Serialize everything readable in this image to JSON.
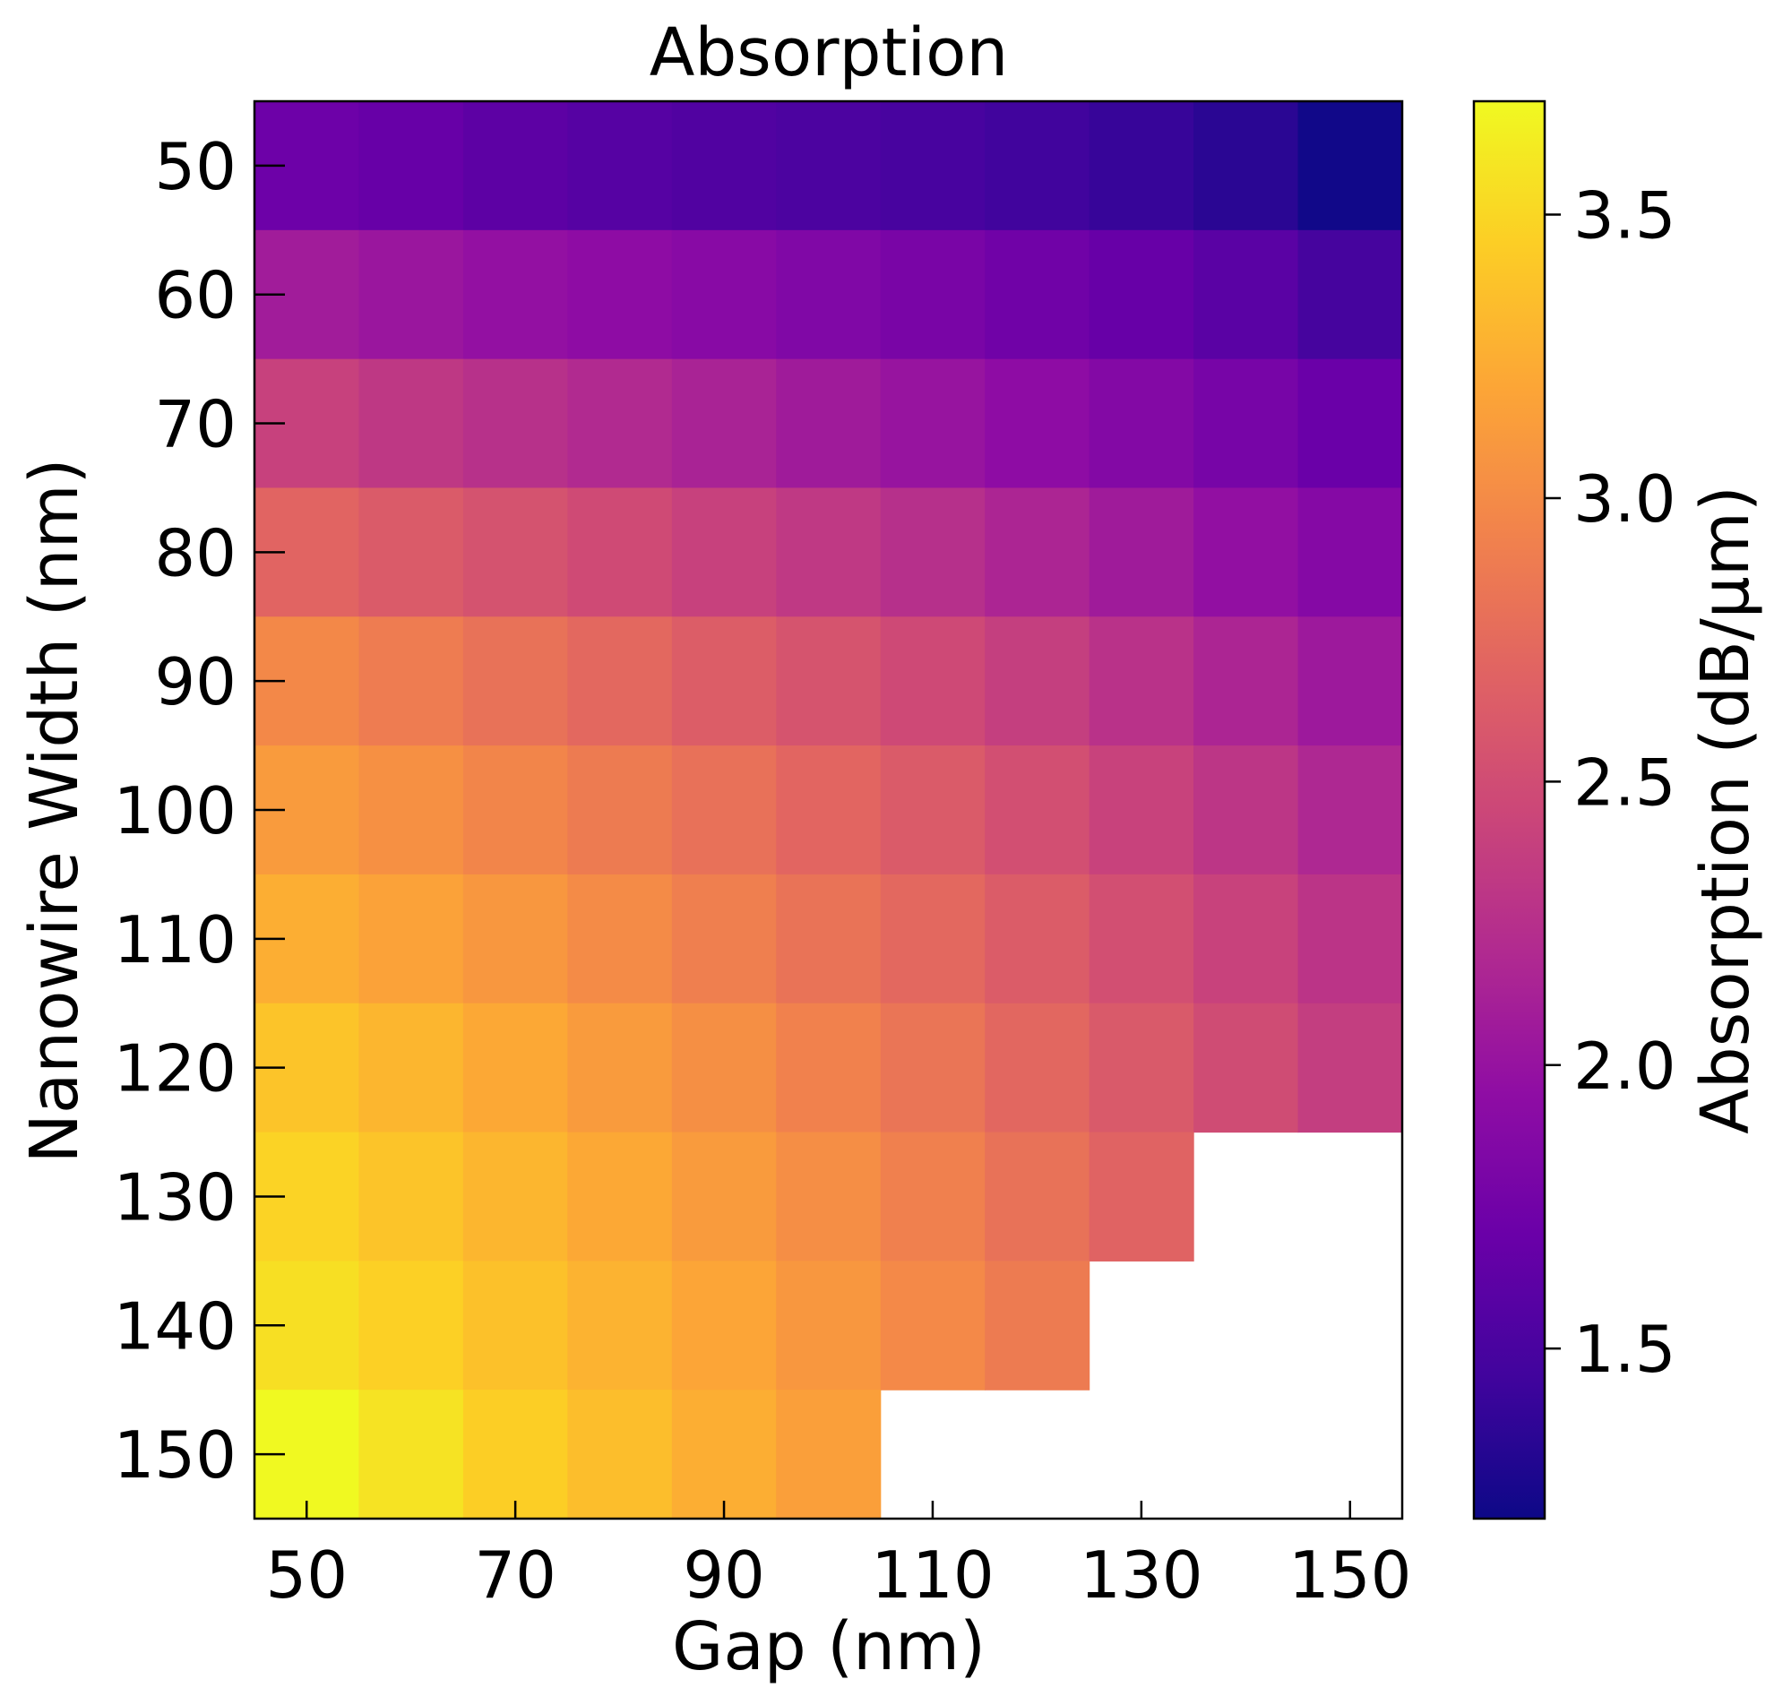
{
  "chart_data": {
    "type": "heatmap",
    "title": "Absorption",
    "xlabel": "Gap (nm)",
    "ylabel": "Nanowire Width (nm)",
    "colorbar_label": "Absorption (dB/μm)",
    "colormap": "plasma",
    "x": [
      50,
      60,
      70,
      80,
      90,
      100,
      110,
      120,
      130,
      140,
      150
    ],
    "y": [
      50,
      60,
      70,
      80,
      90,
      100,
      110,
      120,
      130,
      140,
      150
    ],
    "xticks": [
      50,
      70,
      90,
      110,
      130,
      150
    ],
    "yticks": [
      50,
      60,
      70,
      80,
      90,
      100,
      110,
      120,
      130,
      140,
      150
    ],
    "colorbar_ticks": [
      1.5,
      2.0,
      2.5,
      3.0,
      3.5
    ],
    "clim": [
      1.2,
      3.7
    ],
    "y_inverted": true,
    "values": [
      [
        1.72,
        1.68,
        1.62,
        1.58,
        1.55,
        1.52,
        1.49,
        1.45,
        1.4,
        1.34,
        1.22
      ],
      [
        2.08,
        2.03,
        1.98,
        1.94,
        1.9,
        1.85,
        1.8,
        1.74,
        1.68,
        1.6,
        1.48
      ],
      [
        2.4,
        2.32,
        2.26,
        2.2,
        2.14,
        2.07,
        2.01,
        1.94,
        1.87,
        1.79,
        1.7
      ],
      [
        2.7,
        2.62,
        2.55,
        2.48,
        2.4,
        2.33,
        2.25,
        2.16,
        2.07,
        1.97,
        1.88
      ],
      [
        2.98,
        2.89,
        2.81,
        2.73,
        2.64,
        2.56,
        2.47,
        2.38,
        2.27,
        2.16,
        2.05
      ],
      [
        3.12,
        3.04,
        2.96,
        2.88,
        2.8,
        2.71,
        2.62,
        2.52,
        2.41,
        2.3,
        2.18
      ],
      [
        3.25,
        3.17,
        3.09,
        3.0,
        2.91,
        2.82,
        2.73,
        2.63,
        2.52,
        2.41,
        2.29
      ],
      [
        3.39,
        3.3,
        3.21,
        3.12,
        3.03,
        2.93,
        2.83,
        2.72,
        2.61,
        2.49,
        2.37
      ],
      [
        3.48,
        3.39,
        3.3,
        3.21,
        3.12,
        3.02,
        2.92,
        2.81,
        2.69,
        null,
        null
      ],
      [
        3.55,
        3.46,
        3.37,
        3.28,
        3.19,
        3.09,
        2.99,
        2.88,
        null,
        null,
        null
      ],
      [
        3.7,
        3.57,
        3.45,
        3.35,
        3.25,
        3.15,
        null,
        null,
        null,
        null,
        null
      ]
    ]
  }
}
